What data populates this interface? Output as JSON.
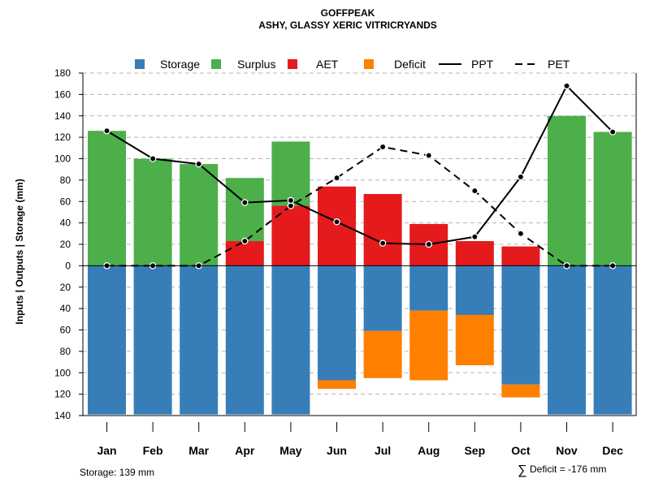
{
  "chart_data": {
    "type": "bar",
    "title": "GOFFPEAK",
    "subtitle": "ASHY, GLASSY XERIC VITRICRYANDS",
    "ylabel": "Inputs | Outputs | Storage    (mm)",
    "ylim": [
      -140,
      180
    ],
    "yticks": [
      180,
      160,
      140,
      120,
      100,
      80,
      60,
      40,
      20,
      0,
      -20,
      -40,
      -60,
      -80,
      -100,
      -120,
      -140
    ],
    "ytick_labels": [
      "180",
      "160",
      "140",
      "120",
      "100",
      "80",
      "60",
      "40",
      "20",
      "0",
      "20",
      "40",
      "60",
      "80",
      "100",
      "120",
      "140"
    ],
    "categories": [
      "Jan",
      "Feb",
      "Mar",
      "Apr",
      "May",
      "Jun",
      "Jul",
      "Aug",
      "Sep",
      "Oct",
      "Nov",
      "Dec"
    ],
    "series": [
      {
        "name": "Storage",
        "color": "#377EB8",
        "values": [
          139,
          139,
          139,
          139,
          139,
          107,
          61,
          42,
          46,
          111,
          139,
          139
        ]
      },
      {
        "name": "Surplus",
        "color": "#4DAF4A",
        "values": [
          126,
          100,
          95,
          59,
          60,
          0,
          0,
          0,
          0,
          0,
          140,
          125
        ]
      },
      {
        "name": "AET",
        "color": "#E41A1C",
        "values": [
          0,
          0,
          0,
          23,
          56,
          74,
          67,
          39,
          23,
          18,
          0,
          0
        ]
      },
      {
        "name": "Deficit",
        "color": "#FF7F00",
        "values": [
          0,
          0,
          0,
          0,
          0,
          8,
          44,
          65,
          47,
          12,
          0,
          0
        ]
      },
      {
        "name": "PPT",
        "style": "solid",
        "values": [
          126,
          100,
          95,
          59,
          61,
          41,
          21,
          20,
          27,
          83,
          168,
          125
        ]
      },
      {
        "name": "PET",
        "style": "dashed",
        "values": [
          0,
          0,
          0,
          23,
          56,
          82,
          111,
          103,
          70,
          30,
          0,
          0
        ]
      }
    ],
    "legend": [
      "Storage",
      "Surplus",
      "AET",
      "Deficit",
      "PPT",
      "PET"
    ],
    "legend_position": "top",
    "grid": true
  },
  "footer": {
    "storage_note": "Storage: 139 mm",
    "deficit_symbol": "∑",
    "deficit_note": "Deficit = -176 mm"
  }
}
